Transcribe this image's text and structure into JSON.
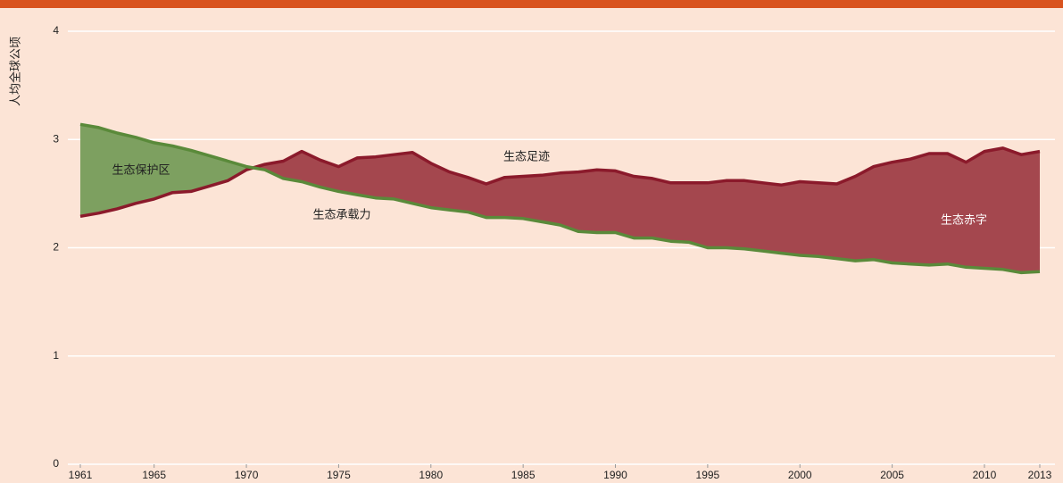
{
  "chart_data": {
    "type": "area-difference",
    "ylabel": "人均全球公顷",
    "annotations": [
      "生态保护区",
      "生态足迹",
      "生态承载力",
      "生态赤字"
    ],
    "x": [
      1961,
      1962,
      1963,
      1964,
      1965,
      1966,
      1967,
      1968,
      1969,
      1970,
      1971,
      1972,
      1973,
      1974,
      1975,
      1976,
      1977,
      1978,
      1979,
      1980,
      1981,
      1982,
      1983,
      1984,
      1985,
      1986,
      1987,
      1988,
      1989,
      1990,
      1991,
      1992,
      1993,
      1994,
      1995,
      1996,
      1997,
      1998,
      1999,
      2000,
      2001,
      2002,
      2003,
      2004,
      2005,
      2006,
      2007,
      2008,
      2009,
      2010,
      2011,
      2012,
      2013
    ],
    "series": [
      {
        "name": "生态足迹",
        "color": "#8b1a2b",
        "fill": "#a4474e",
        "values": [
          2.29,
          2.32,
          2.36,
          2.41,
          2.45,
          2.51,
          2.52,
          2.57,
          2.62,
          2.72,
          2.77,
          2.8,
          2.89,
          2.81,
          2.75,
          2.83,
          2.84,
          2.86,
          2.88,
          2.78,
          2.7,
          2.65,
          2.59,
          2.65,
          2.66,
          2.67,
          2.69,
          2.7,
          2.72,
          2.71,
          2.66,
          2.64,
          2.6,
          2.6,
          2.6,
          2.62,
          2.62,
          2.6,
          2.58,
          2.61,
          2.6,
          2.59,
          2.66,
          2.75,
          2.79,
          2.82,
          2.87,
          2.87,
          2.79,
          2.89,
          2.92,
          2.86,
          2.89
        ]
      },
      {
        "name": "生态承载力",
        "color": "#5a8a3a",
        "fill": "#7da060",
        "values": [
          3.14,
          3.11,
          3.06,
          3.02,
          2.97,
          2.94,
          2.9,
          2.85,
          2.8,
          2.75,
          2.72,
          2.64,
          2.61,
          2.56,
          2.52,
          2.49,
          2.46,
          2.45,
          2.41,
          2.37,
          2.35,
          2.33,
          2.28,
          2.28,
          2.27,
          2.24,
          2.21,
          2.15,
          2.14,
          2.14,
          2.09,
          2.09,
          2.06,
          2.05,
          2.0,
          2.0,
          1.99,
          1.97,
          1.95,
          1.93,
          1.92,
          1.9,
          1.88,
          1.89,
          1.86,
          1.85,
          1.84,
          1.85,
          1.82,
          1.81,
          1.8,
          1.77,
          1.78
        ]
      }
    ],
    "xlim": [
      1961,
      2013
    ],
    "xticks": [
      1961,
      1965,
      1970,
      1975,
      1980,
      1985,
      1990,
      1995,
      2000,
      2005,
      2010,
      2013
    ],
    "ylim": [
      0,
      4
    ],
    "yticks": [
      0,
      1,
      2,
      3,
      4
    ],
    "grid": true
  }
}
